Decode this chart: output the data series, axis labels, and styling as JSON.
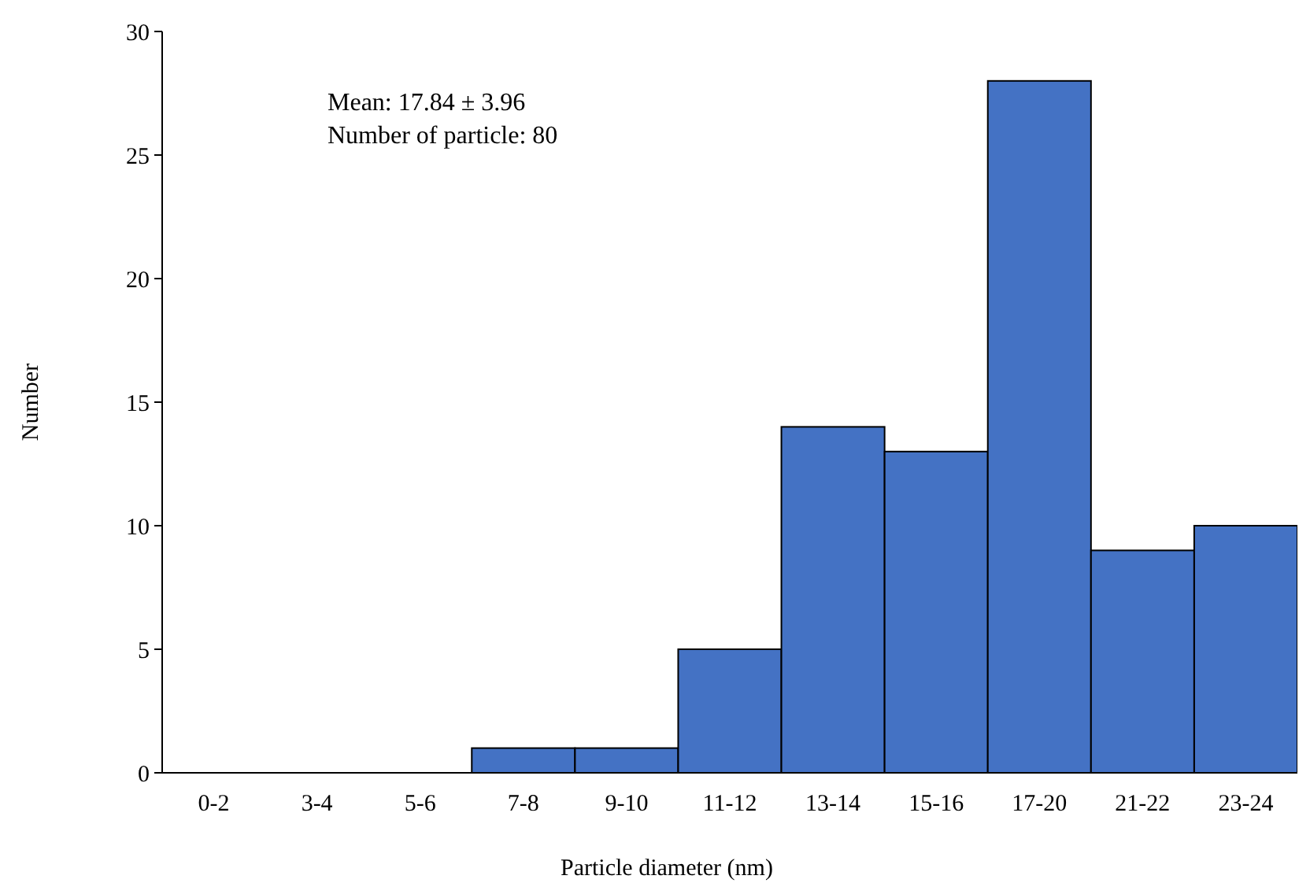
{
  "chart_data": {
    "type": "bar",
    "xlabel": "Particle diameter (nm)",
    "ylabel": "Number",
    "categories": [
      "0-2",
      "3-4",
      "5-6",
      "7-8",
      "9-10",
      "11-12",
      "13-14",
      "15-16",
      "17-20",
      "21-22",
      "23-24"
    ],
    "values": [
      0,
      0,
      0,
      1,
      1,
      5,
      14,
      13,
      28,
      9,
      10
    ],
    "color": "#4472c4",
    "ylim": [
      0,
      30
    ],
    "yticks": [
      0,
      5,
      10,
      15,
      20,
      25,
      30
    ],
    "grid": false,
    "annotations": [
      "Mean: 17.84 ± 3.96",
      "Number of particle: 80"
    ]
  }
}
